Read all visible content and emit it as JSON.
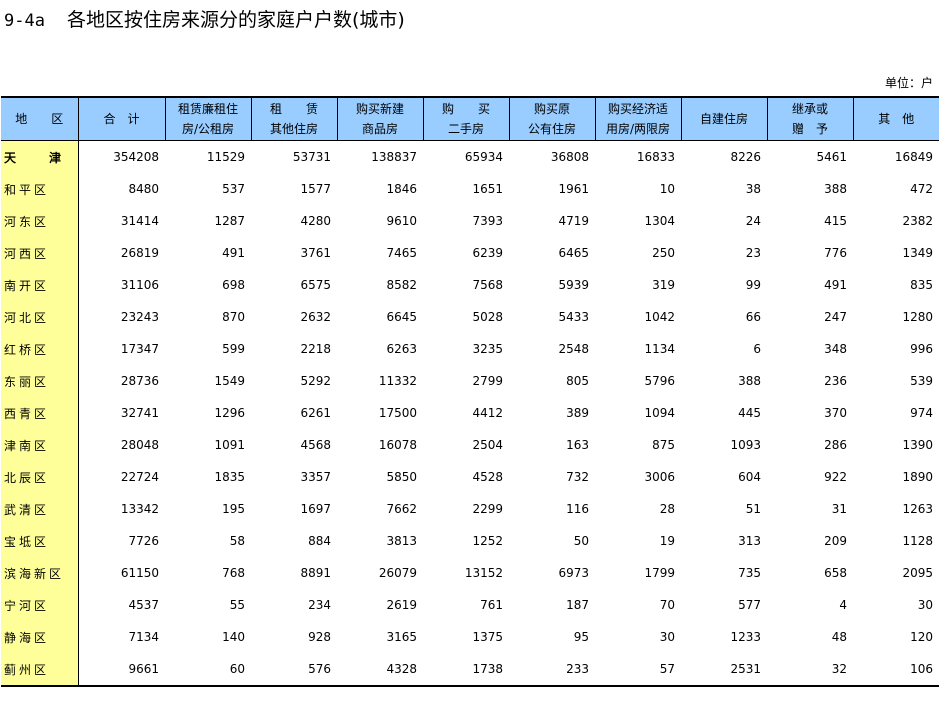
{
  "title": {
    "code": "9-4a",
    "text": "各地区按住房来源分的家庭户户数(城市)"
  },
  "unit": "单位：户",
  "columns": [
    [
      "地　　区"
    ],
    [
      "合　计"
    ],
    [
      "租赁廉租住",
      "房/公租房"
    ],
    [
      "租　　赁",
      "其他住房"
    ],
    [
      "购买新建",
      "商品房"
    ],
    [
      "购　　买",
      "二手房"
    ],
    [
      "购买原",
      "公有住房"
    ],
    [
      "购买经济适",
      "用房/两限房"
    ],
    [
      "自建住房"
    ],
    [
      "继承或",
      "赠　予"
    ],
    [
      "其　他"
    ]
  ],
  "rows": [
    [
      "天　　津",
      "354208",
      "11529",
      "53731",
      "138837",
      "65934",
      "36808",
      "16833",
      "8226",
      "5461",
      "16849"
    ],
    [
      "和平区",
      "8480",
      "537",
      "1577",
      "1846",
      "1651",
      "1961",
      "10",
      "38",
      "388",
      "472"
    ],
    [
      "河东区",
      "31414",
      "1287",
      "4280",
      "9610",
      "7393",
      "4719",
      "1304",
      "24",
      "415",
      "2382"
    ],
    [
      "河西区",
      "26819",
      "491",
      "3761",
      "7465",
      "6239",
      "6465",
      "250",
      "23",
      "776",
      "1349"
    ],
    [
      "南开区",
      "31106",
      "698",
      "6575",
      "8582",
      "7568",
      "5939",
      "319",
      "99",
      "491",
      "835"
    ],
    [
      "河北区",
      "23243",
      "870",
      "2632",
      "6645",
      "5028",
      "5433",
      "1042",
      "66",
      "247",
      "1280"
    ],
    [
      "红桥区",
      "17347",
      "599",
      "2218",
      "6263",
      "3235",
      "2548",
      "1134",
      "6",
      "348",
      "996"
    ],
    [
      "东丽区",
      "28736",
      "1549",
      "5292",
      "11332",
      "2799",
      "805",
      "5796",
      "388",
      "236",
      "539"
    ],
    [
      "西青区",
      "32741",
      "1296",
      "6261",
      "17500",
      "4412",
      "389",
      "1094",
      "445",
      "370",
      "974"
    ],
    [
      "津南区",
      "28048",
      "1091",
      "4568",
      "16078",
      "2504",
      "163",
      "875",
      "1093",
      "286",
      "1390"
    ],
    [
      "北辰区",
      "22724",
      "1835",
      "3357",
      "5850",
      "4528",
      "732",
      "3006",
      "604",
      "922",
      "1890"
    ],
    [
      "武清区",
      "13342",
      "195",
      "1697",
      "7662",
      "2299",
      "116",
      "28",
      "51",
      "31",
      "1263"
    ],
    [
      "宝坻区",
      "7726",
      "58",
      "884",
      "3813",
      "1252",
      "50",
      "19",
      "313",
      "209",
      "1128"
    ],
    [
      "滨海新区",
      "61150",
      "768",
      "8891",
      "26079",
      "13152",
      "6973",
      "1799",
      "735",
      "658",
      "2095"
    ],
    [
      "宁河区",
      "4537",
      "55",
      "234",
      "2619",
      "761",
      "187",
      "70",
      "577",
      "4",
      "30"
    ],
    [
      "静海区",
      "7134",
      "140",
      "928",
      "3165",
      "1375",
      "95",
      "30",
      "1233",
      "48",
      "120"
    ],
    [
      "蓟州区",
      "9661",
      "60",
      "576",
      "4328",
      "1738",
      "233",
      "57",
      "2531",
      "32",
      "106"
    ]
  ]
}
